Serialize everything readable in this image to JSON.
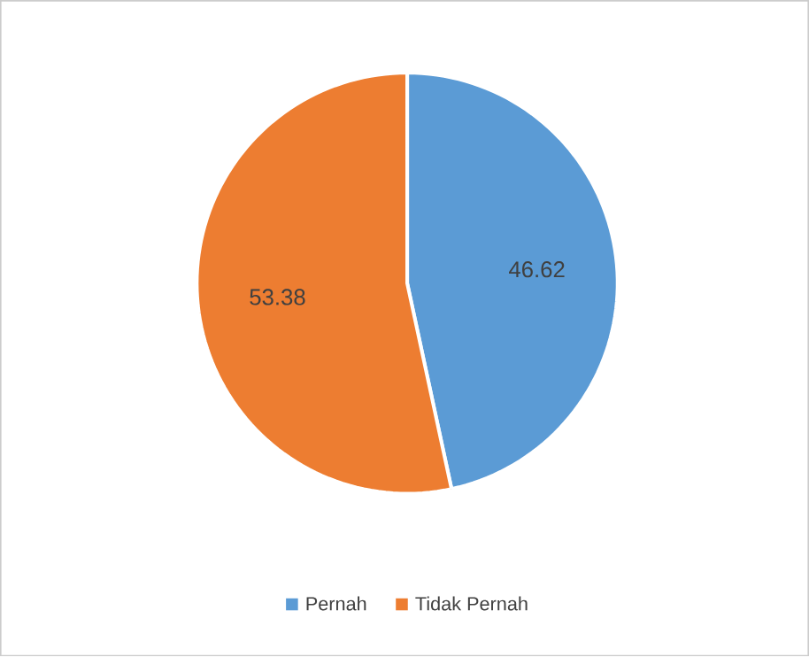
{
  "chart_data": {
    "type": "pie",
    "categories": [
      "Pernah",
      "Tidak Pernah"
    ],
    "values": [
      46.62,
      53.38
    ],
    "colors": [
      "#5b9bd5",
      "#ed7d31"
    ],
    "data_labels": true,
    "legend": "bottom"
  }
}
